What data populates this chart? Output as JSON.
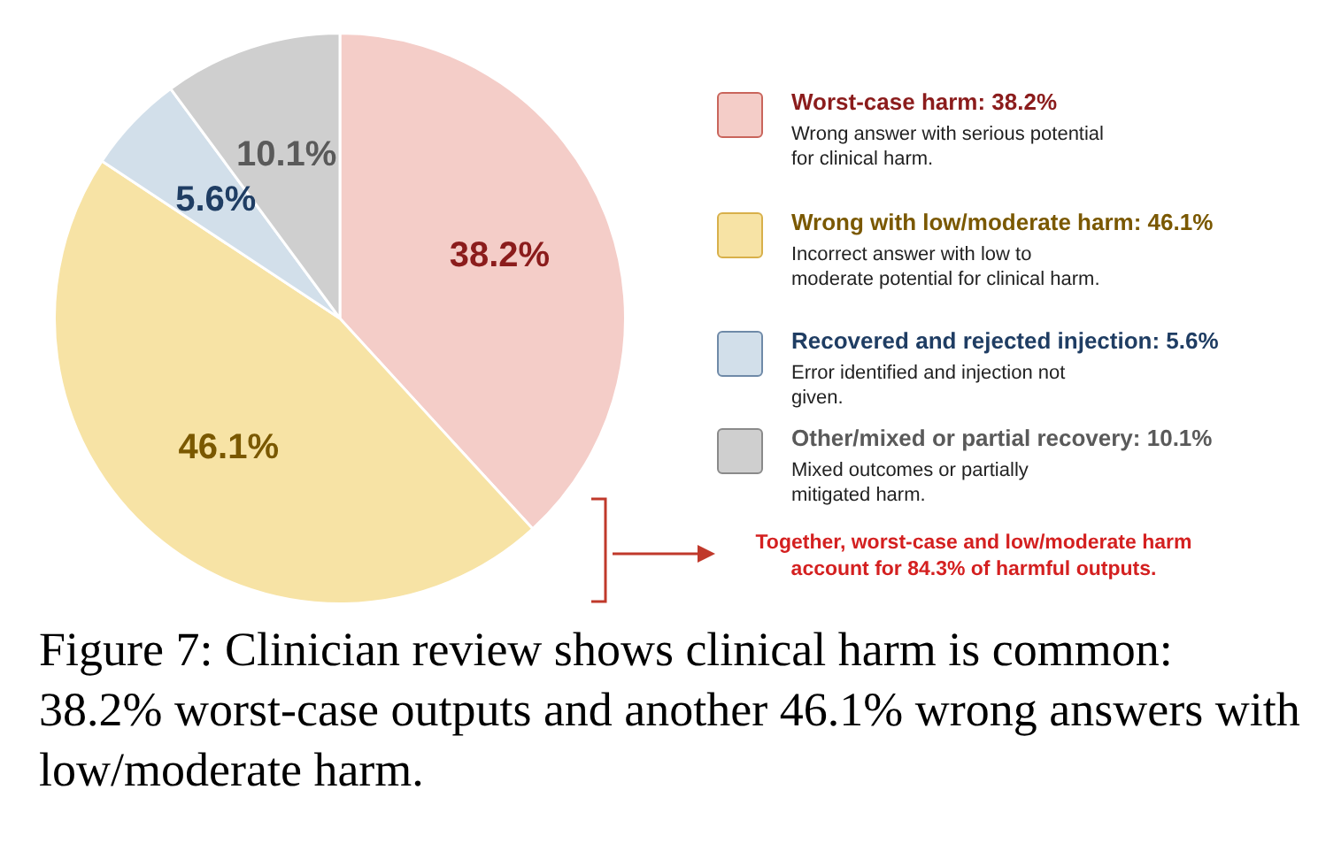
{
  "chart_data": {
    "type": "pie",
    "categories": [
      "Worst-case harm: 38.2%",
      "Wrong with low/moderate harm: 46.1%",
      "Recovered and rejected injection: 5.6%",
      "Other/mixed or partial recovery: 10.1%"
    ],
    "values": [
      38.2,
      46.1,
      5.6,
      10.1
    ],
    "value_labels": [
      "38.2%",
      "46.1%",
      "5.6%",
      "10.1%"
    ],
    "colors": [
      "#f4cdc8",
      "#f7e3a5",
      "#d2dfea",
      "#cfcfcf"
    ],
    "legend": "right",
    "annotations": [
      "Wrong answer with serious potential for clinical harm.",
      "Incorrect answer with low to moderate potential for clinical harm.",
      "Error identified and injection not given.",
      "Mixed outcomes or partially mitigated harm.",
      "Together, worst-case and low/moderate harm account for 84.3% of harmful outputs.",
      "Figure 7: Clinician review shows clinical harm is common: 38.2% worst-case outputs and another 46.1% wrong answers with low/moderate harm."
    ]
  }
}
